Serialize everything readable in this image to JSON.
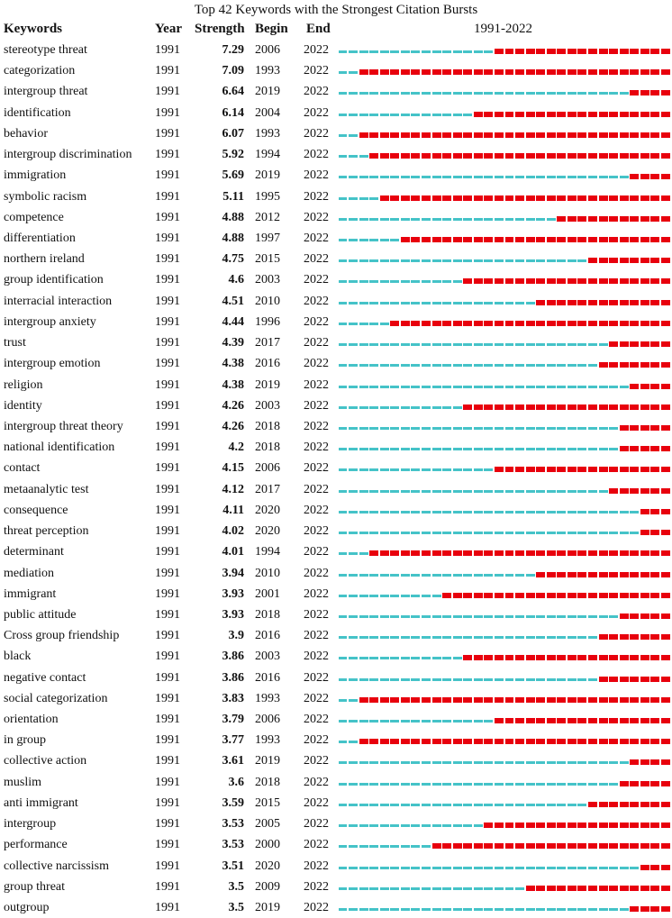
{
  "chart_data": {
    "type": "table",
    "title": "Top 42 Keywords with the Strongest Citation Bursts",
    "columns": [
      "Keywords",
      "Year",
      "Strength",
      "Begin",
      "End"
    ],
    "timeline_label": "1991-2022",
    "timeline_start": 1991,
    "timeline_end": 2022,
    "colors": {
      "base": "#45C3C8",
      "burst": "#E8000D"
    },
    "rows": [
      {
        "keyword": "stereotype threat",
        "year": "1991",
        "strength": "7.29",
        "begin": "2006",
        "end": "2022"
      },
      {
        "keyword": "categorization",
        "year": "1991",
        "strength": "7.09",
        "begin": "1993",
        "end": "2022"
      },
      {
        "keyword": "intergroup threat",
        "year": "1991",
        "strength": "6.64",
        "begin": "2019",
        "end": "2022"
      },
      {
        "keyword": "identification",
        "year": "1991",
        "strength": "6.14",
        "begin": "2004",
        "end": "2022"
      },
      {
        "keyword": "behavior",
        "year": "1991",
        "strength": "6.07",
        "begin": "1993",
        "end": "2022"
      },
      {
        "keyword": "intergroup discrimination",
        "year": "1991",
        "strength": "5.92",
        "begin": "1994",
        "end": "2022"
      },
      {
        "keyword": "immigration",
        "year": "1991",
        "strength": "5.69",
        "begin": "2019",
        "end": "2022"
      },
      {
        "keyword": "symbolic racism",
        "year": "1991",
        "strength": "5.11",
        "begin": "1995",
        "end": "2022"
      },
      {
        "keyword": "competence",
        "year": "1991",
        "strength": "4.88",
        "begin": "2012",
        "end": "2022"
      },
      {
        "keyword": "differentiation",
        "year": "1991",
        "strength": "4.88",
        "begin": "1997",
        "end": "2022"
      },
      {
        "keyword": "northern ireland",
        "year": "1991",
        "strength": "4.75",
        "begin": "2015",
        "end": "2022"
      },
      {
        "keyword": "group identification",
        "year": "1991",
        "strength": "4.6",
        "begin": "2003",
        "end": "2022"
      },
      {
        "keyword": "interracial interaction",
        "year": "1991",
        "strength": "4.51",
        "begin": "2010",
        "end": "2022"
      },
      {
        "keyword": "intergroup anxiety",
        "year": "1991",
        "strength": "4.44",
        "begin": "1996",
        "end": "2022"
      },
      {
        "keyword": "trust",
        "year": "1991",
        "strength": "4.39",
        "begin": "2017",
        "end": "2022"
      },
      {
        "keyword": "intergroup emotion",
        "year": "1991",
        "strength": "4.38",
        "begin": "2016",
        "end": "2022"
      },
      {
        "keyword": "religion",
        "year": "1991",
        "strength": "4.38",
        "begin": "2019",
        "end": "2022"
      },
      {
        "keyword": "identity",
        "year": "1991",
        "strength": "4.26",
        "begin": "2003",
        "end": "2022"
      },
      {
        "keyword": "intergroup threat theory",
        "year": "1991",
        "strength": "4.26",
        "begin": "2018",
        "end": "2022"
      },
      {
        "keyword": "national identification",
        "year": "1991",
        "strength": "4.2",
        "begin": "2018",
        "end": "2022"
      },
      {
        "keyword": "contact",
        "year": "1991",
        "strength": "4.15",
        "begin": "2006",
        "end": "2022"
      },
      {
        "keyword": "metaanalytic test",
        "year": "1991",
        "strength": "4.12",
        "begin": "2017",
        "end": "2022"
      },
      {
        "keyword": "consequence",
        "year": "1991",
        "strength": "4.11",
        "begin": "2020",
        "end": "2022"
      },
      {
        "keyword": "threat perception",
        "year": "1991",
        "strength": "4.02",
        "begin": "2020",
        "end": "2022"
      },
      {
        "keyword": "determinant",
        "year": "1991",
        "strength": "4.01",
        "begin": "1994",
        "end": "2022"
      },
      {
        "keyword": "mediation",
        "year": "1991",
        "strength": "3.94",
        "begin": "2010",
        "end": "2022"
      },
      {
        "keyword": "immigrant",
        "year": "1991",
        "strength": "3.93",
        "begin": "2001",
        "end": "2022"
      },
      {
        "keyword": "public attitude",
        "year": "1991",
        "strength": "3.93",
        "begin": "2018",
        "end": "2022"
      },
      {
        "keyword": "Cross group friendship",
        "year": "1991",
        "strength": "3.9",
        "begin": "2016",
        "end": "2022"
      },
      {
        "keyword": "black",
        "year": "1991",
        "strength": "3.86",
        "begin": "2003",
        "end": "2022"
      },
      {
        "keyword": "negative contact",
        "year": "1991",
        "strength": "3.86",
        "begin": "2016",
        "end": "2022"
      },
      {
        "keyword": "social categorization",
        "year": "1991",
        "strength": "3.83",
        "begin": "1993",
        "end": "2022"
      },
      {
        "keyword": "orientation",
        "year": "1991",
        "strength": "3.79",
        "begin": "2006",
        "end": "2022"
      },
      {
        "keyword": "in group",
        "year": "1991",
        "strength": "3.77",
        "begin": "1993",
        "end": "2022"
      },
      {
        "keyword": "collective action",
        "year": "1991",
        "strength": "3.61",
        "begin": "2019",
        "end": "2022"
      },
      {
        "keyword": "muslim",
        "year": "1991",
        "strength": "3.6",
        "begin": "2018",
        "end": "2022"
      },
      {
        "keyword": "anti immigrant",
        "year": "1991",
        "strength": "3.59",
        "begin": "2015",
        "end": "2022"
      },
      {
        "keyword": "intergroup",
        "year": "1991",
        "strength": "3.53",
        "begin": "2005",
        "end": "2022"
      },
      {
        "keyword": "performance",
        "year": "1991",
        "strength": "3.53",
        "begin": "2000",
        "end": "2022"
      },
      {
        "keyword": "collective narcissism",
        "year": "1991",
        "strength": "3.51",
        "begin": "2020",
        "end": "2022"
      },
      {
        "keyword": "group threat",
        "year": "1991",
        "strength": "3.5",
        "begin": "2009",
        "end": "2022"
      },
      {
        "keyword": "outgroup",
        "year": "1991",
        "strength": "3.5",
        "begin": "2019",
        "end": "2022"
      }
    ]
  }
}
